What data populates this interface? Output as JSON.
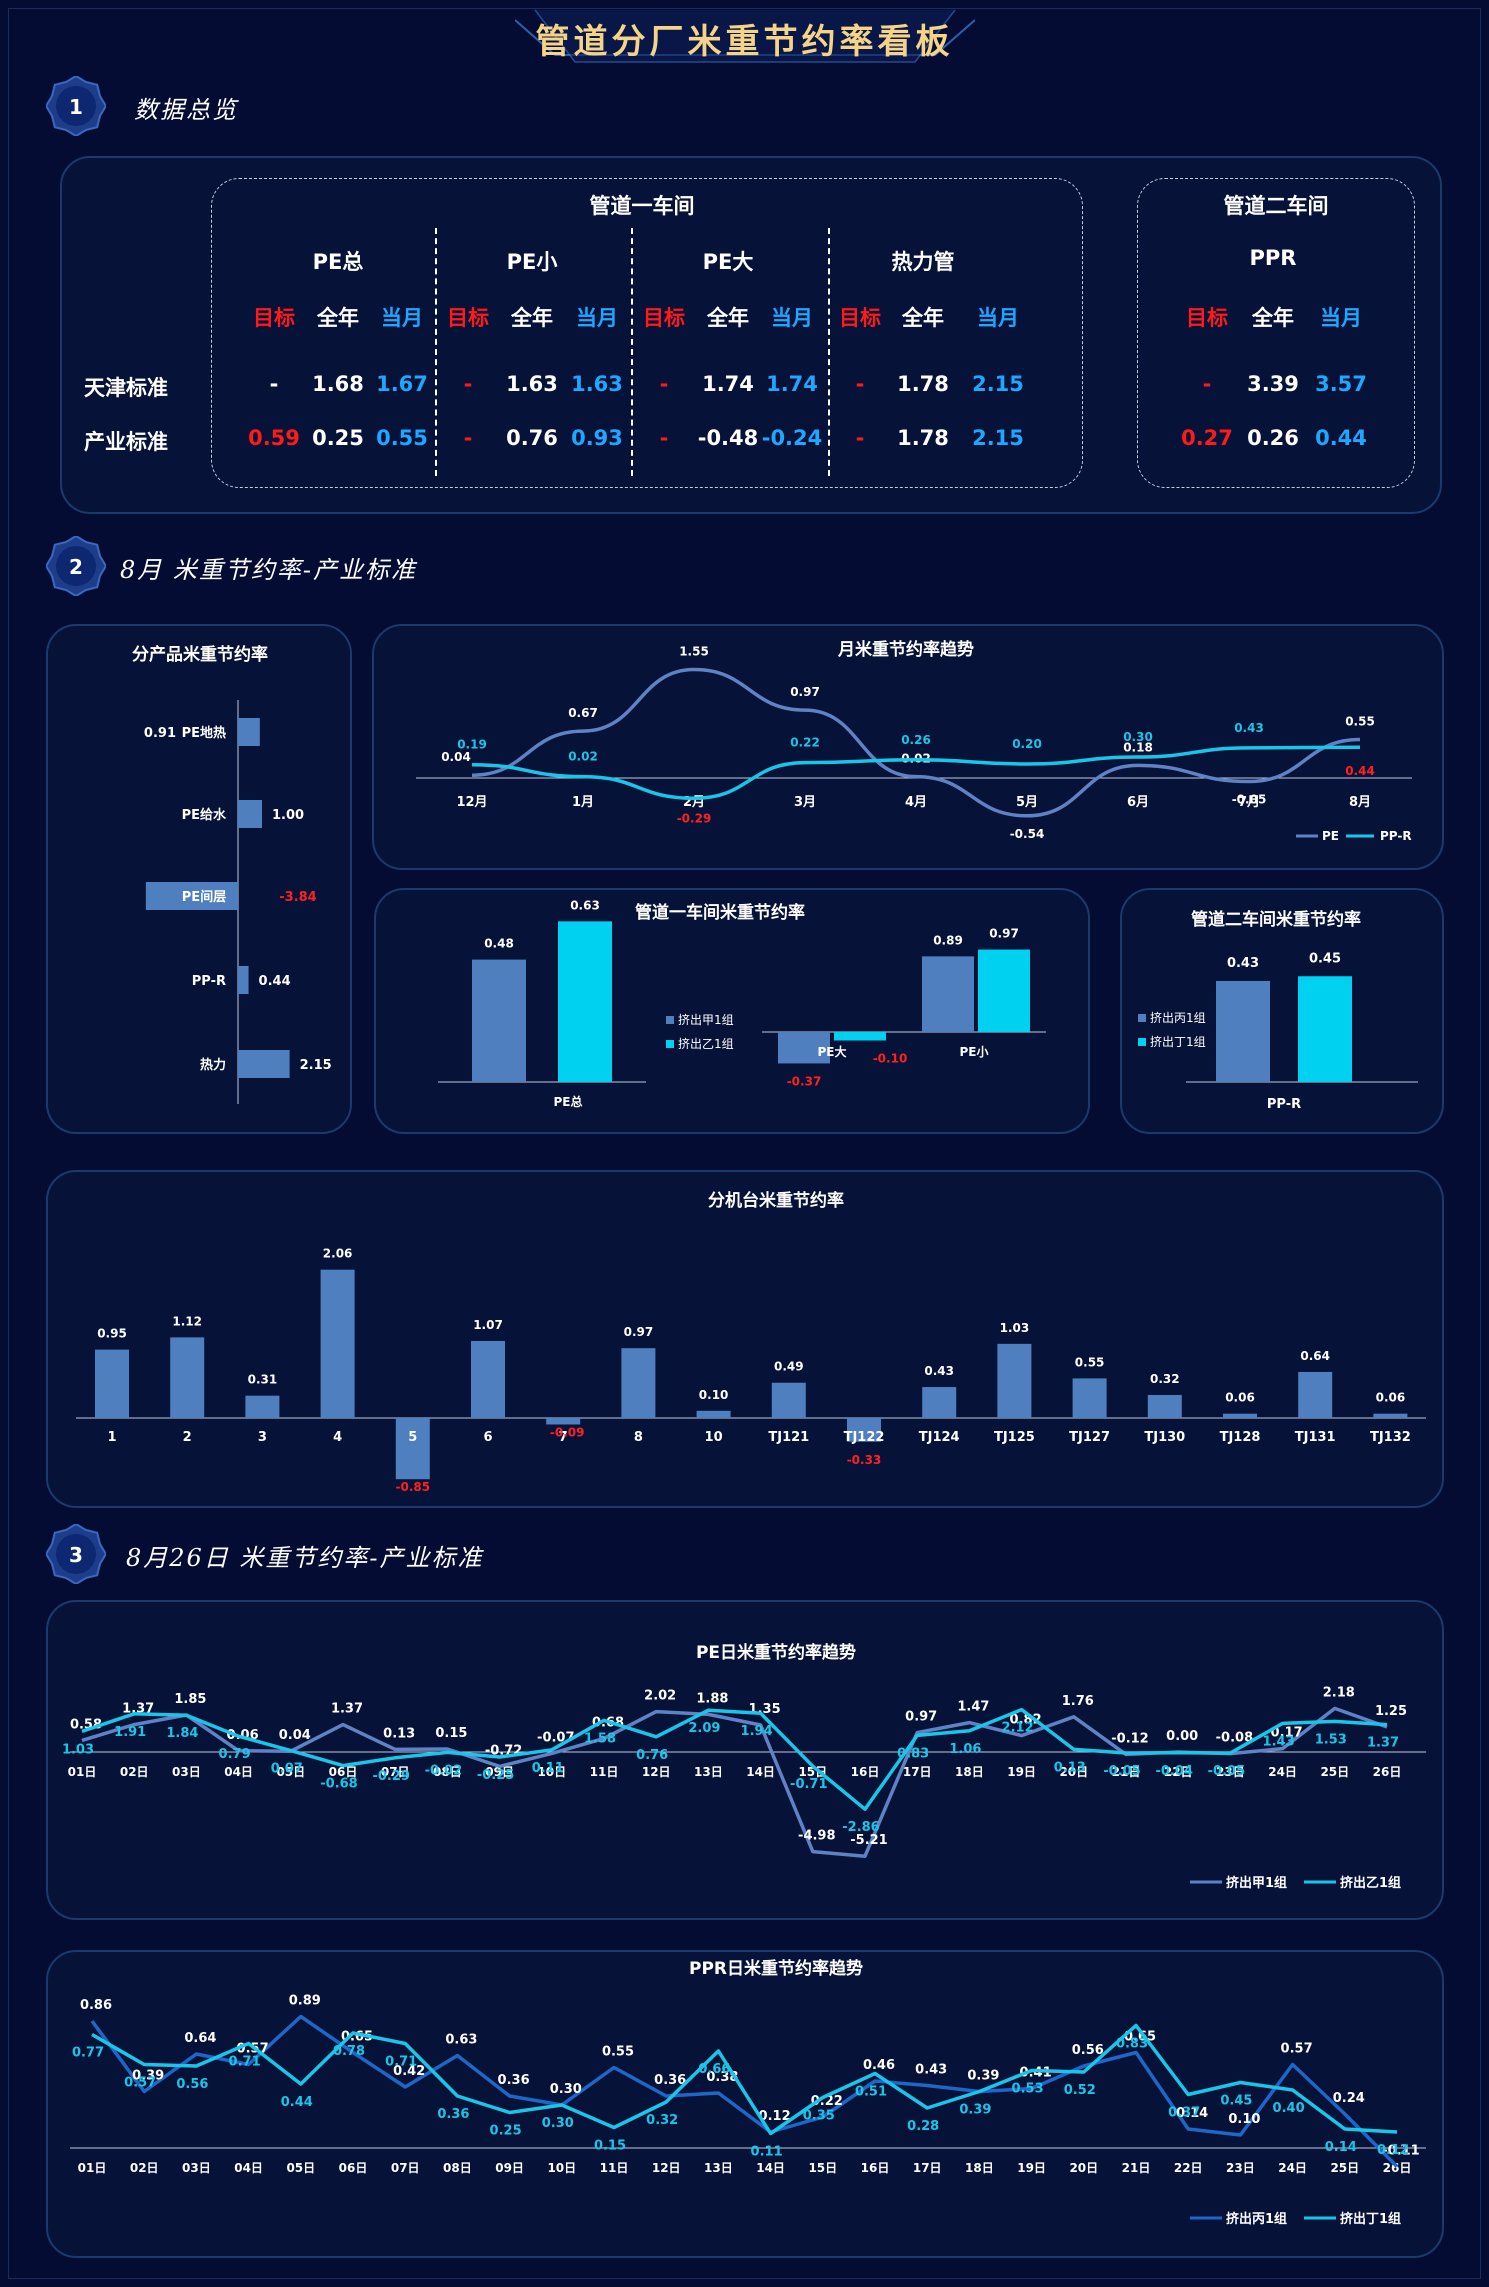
{
  "title": "管道分厂米重节约率看板",
  "sections": [
    {
      "num": "1",
      "title": "数据总览"
    },
    {
      "num": "2",
      "title": "8月 米重节约率-产业标准"
    },
    {
      "num": "3",
      "title": "8月26日 米重节约率-产业标准"
    }
  ],
  "overview": {
    "workshop1": "管道一车间",
    "workshop2": "管道二车间",
    "row_labels": [
      "天津标准",
      "产业标准"
    ],
    "col_labels": [
      "目标",
      "全年",
      "当月"
    ],
    "groups": [
      {
        "name": "PE总",
        "rows": [
          [
            "-",
            "1.68",
            "1.67"
          ],
          [
            "0.59",
            "0.25",
            "0.55"
          ]
        ]
      },
      {
        "name": "PE小",
        "rows": [
          [
            "-",
            "1.63",
            "1.63"
          ],
          [
            "-",
            "0.76",
            "0.93"
          ]
        ]
      },
      {
        "name": "PE大",
        "rows": [
          [
            "-",
            "1.74",
            "1.74"
          ],
          [
            "-",
            "-0.48",
            "-0.24"
          ]
        ]
      },
      {
        "name": "热力管",
        "rows": [
          [
            "-",
            "1.78",
            "2.15"
          ],
          [
            "-",
            "1.78",
            "2.15"
          ]
        ]
      },
      {
        "name": "PPR",
        "rows": [
          [
            "-",
            "3.39",
            "3.57"
          ],
          [
            "0.27",
            "0.26",
            "0.44"
          ]
        ]
      }
    ]
  },
  "chart_data": [
    {
      "id": "product",
      "type": "bar",
      "title": "分产品米重节约率",
      "orientation": "horizontal",
      "categories": [
        "PE地热",
        "PE给水",
        "PE间层",
        "PP-R",
        "热力"
      ],
      "values": [
        0.91,
        1.0,
        -3.84,
        0.44,
        2.15
      ],
      "labels": [
        "0.91",
        "1.00",
        "-3.84",
        "0.44",
        "2.15"
      ]
    },
    {
      "id": "monthly",
      "type": "line",
      "title": "月米重节约率趋势",
      "categories": [
        "12月",
        "1月",
        "2月",
        "3月",
        "4月",
        "5月",
        "6月",
        "7月",
        "8月"
      ],
      "series": [
        {
          "name": "PE",
          "values": [
            0.04,
            0.67,
            1.55,
            0.97,
            0.02,
            -0.54,
            0.18,
            -0.05,
            0.55
          ]
        },
        {
          "name": "PP-R",
          "values": [
            0.19,
            0.02,
            -0.29,
            0.22,
            0.26,
            0.2,
            0.3,
            0.43,
            0.44
          ]
        }
      ]
    },
    {
      "id": "ws1",
      "type": "bar",
      "title": "管道一车间米重节约率",
      "series": [
        {
          "name": "挤出甲1组",
          "values": [
            0.48,
            -0.37,
            0.89
          ]
        },
        {
          "name": "挤出乙1组",
          "values": [
            0.63,
            -0.1,
            0.97
          ]
        }
      ],
      "categories": [
        "PE总",
        "PE大",
        "PE小"
      ]
    },
    {
      "id": "ws2",
      "type": "bar",
      "title": "管道二车间米重节约率",
      "categories": [
        "PP-R"
      ],
      "series": [
        {
          "name": "挤出丙1组",
          "values": [
            0.43
          ]
        },
        {
          "name": "挤出丁1组",
          "values": [
            0.45
          ]
        }
      ]
    },
    {
      "id": "machine",
      "type": "bar",
      "title": "分机台米重节约率",
      "categories": [
        "1",
        "2",
        "3",
        "4",
        "5",
        "6",
        "7",
        "8",
        "10",
        "TJ121",
        "TJ122",
        "TJ124",
        "TJ125",
        "TJ127",
        "TJ130",
        "TJ128",
        "TJ131",
        "TJ132"
      ],
      "values": [
        0.95,
        1.12,
        0.31,
        2.06,
        -0.85,
        1.07,
        -0.09,
        0.97,
        0.1,
        0.49,
        -0.33,
        0.43,
        1.03,
        0.55,
        0.32,
        0.06,
        0.64,
        0.06
      ]
    },
    {
      "id": "pe_daily",
      "type": "line",
      "title": "PE日米重节约率趋势",
      "categories": [
        "01日",
        "02日",
        "03日",
        "04日",
        "05日",
        "06日",
        "07日",
        "08日",
        "09日",
        "10日",
        "11日",
        "12日",
        "13日",
        "14日",
        "15日",
        "16日",
        "17日",
        "18日",
        "19日",
        "20日",
        "21日",
        "22日",
        "23日",
        "24日",
        "25日",
        "26日"
      ],
      "series": [
        {
          "name": "挤出甲1组",
          "values": [
            0.58,
            1.37,
            1.85,
            0.06,
            0.04,
            1.37,
            0.13,
            0.15,
            -0.72,
            -0.07,
            0.68,
            2.02,
            1.88,
            1.35,
            -4.98,
            -5.21,
            0.97,
            1.47,
            0.82,
            1.76,
            -0.12,
            0.0,
            -0.08,
            0.17,
            2.18,
            1.25
          ]
        },
        {
          "name": "挤出乙1组",
          "values": [
            1.03,
            1.91,
            1.84,
            0.79,
            0.07,
            -0.68,
            -0.29,
            -0.02,
            -0.25,
            0.11,
            1.58,
            0.76,
            2.09,
            1.94,
            -0.71,
            -2.86,
            0.83,
            1.06,
            2.12,
            0.13,
            -0.05,
            -0.04,
            -0.05,
            1.43,
            1.53,
            1.37
          ]
        }
      ]
    },
    {
      "id": "ppr_daily",
      "type": "line",
      "title": "PPR日米重节约率趋势",
      "categories": [
        "01日",
        "02日",
        "03日",
        "04日",
        "05日",
        "06日",
        "07日",
        "08日",
        "09日",
        "10日",
        "11日",
        "12日",
        "13日",
        "14日",
        "15日",
        "16日",
        "17日",
        "18日",
        "19日",
        "20日",
        "21日",
        "22日",
        "23日",
        "24日",
        "25日",
        "26日"
      ],
      "series": [
        {
          "name": "挤出丙1组",
          "values": [
            0.86,
            0.39,
            0.64,
            0.57,
            0.89,
            0.65,
            0.42,
            0.63,
            0.36,
            0.3,
            0.55,
            0.36,
            0.38,
            0.12,
            0.22,
            0.46,
            0.43,
            0.39,
            0.41,
            0.56,
            0.65,
            0.14,
            0.1,
            0.57,
            0.24,
            -0.11
          ]
        },
        {
          "name": "挤出丁1组",
          "values": [
            0.77,
            0.57,
            0.56,
            0.71,
            0.44,
            0.78,
            0.71,
            0.36,
            0.25,
            0.3,
            0.15,
            0.32,
            0.66,
            0.11,
            0.35,
            0.51,
            0.28,
            0.39,
            0.53,
            0.52,
            0.83,
            0.37,
            0.45,
            0.4,
            0.14,
            0.12
          ]
        }
      ]
    }
  ]
}
